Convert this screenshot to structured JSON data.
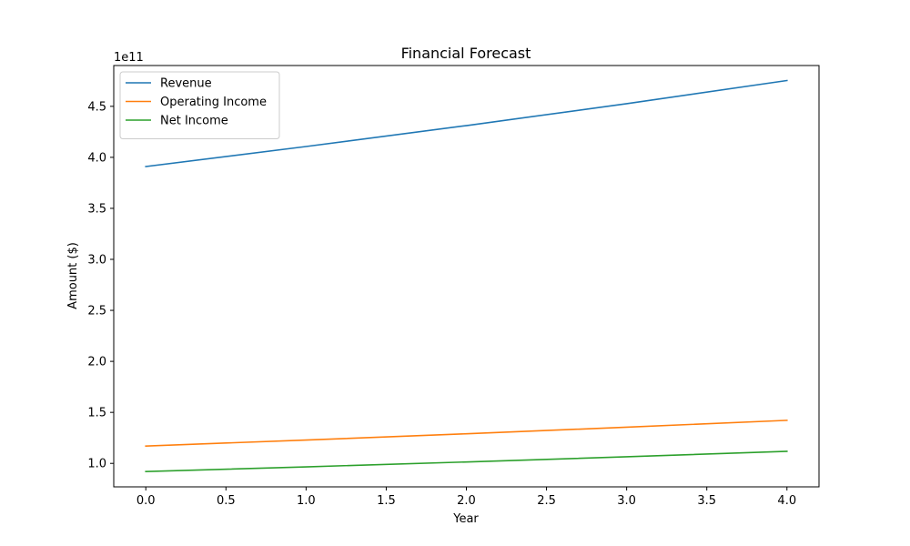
{
  "chart_data": {
    "type": "line",
    "title": "Financial Forecast",
    "xlabel": "Year",
    "ylabel": "Amount ($)",
    "y_offset_label": "1e11",
    "xlim": [
      -0.2,
      4.2
    ],
    "ylim": [
      0.77,
      4.9
    ],
    "x_ticks": [
      0.0,
      0.5,
      1.0,
      1.5,
      2.0,
      2.5,
      3.0,
      3.5,
      4.0
    ],
    "x_tick_labels": [
      "0.0",
      "0.5",
      "1.0",
      "1.5",
      "2.0",
      "2.5",
      "3.0",
      "3.5",
      "4.0"
    ],
    "y_ticks": [
      1.0,
      1.5,
      2.0,
      2.5,
      3.0,
      3.5,
      4.0,
      4.5
    ],
    "y_tick_labels": [
      "1.0",
      "1.5",
      "2.0",
      "2.5",
      "3.0",
      "3.5",
      "4.0",
      "4.5"
    ],
    "grid": false,
    "legend_position": "top-left",
    "x": [
      0,
      1,
      2,
      3,
      4
    ],
    "series": [
      {
        "name": "Revenue",
        "color": "#1f77b4",
        "values": [
          3.91,
          4.106,
          4.311,
          4.526,
          4.753
        ]
      },
      {
        "name": "Operating Income",
        "color": "#ff7f0e",
        "values": [
          1.17,
          1.229,
          1.29,
          1.355,
          1.422
        ]
      },
      {
        "name": "Net Income",
        "color": "#2ca02c",
        "values": [
          0.92,
          0.966,
          1.014,
          1.065,
          1.118
        ]
      }
    ]
  }
}
